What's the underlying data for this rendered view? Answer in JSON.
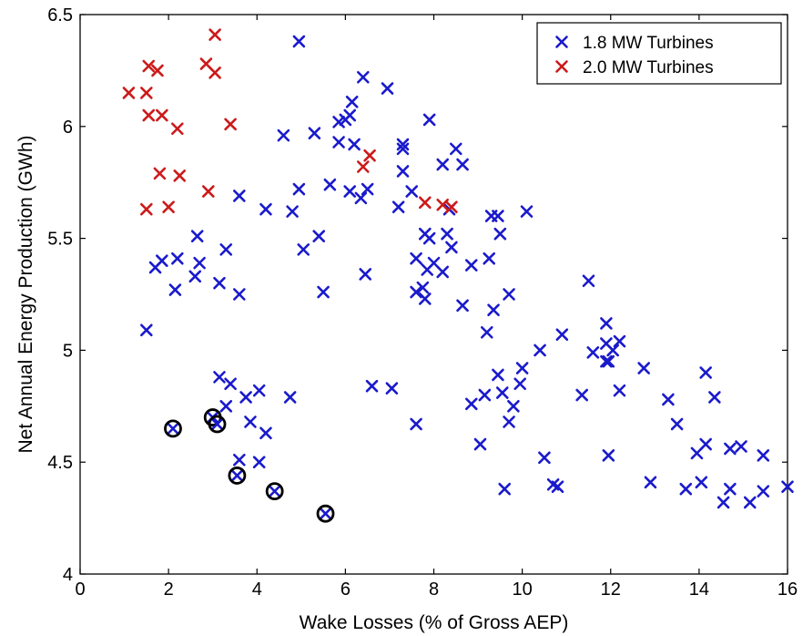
{
  "chart_data": {
    "type": "scatter",
    "xlabel": "Wake Losses (% of Gross AEP)",
    "ylabel": "Net Annual Energy Production (GWh)",
    "xlim": [
      0,
      16
    ],
    "ylim": [
      4,
      6.5
    ],
    "xticks": [
      0,
      2,
      4,
      6,
      8,
      10,
      12,
      14,
      16
    ],
    "xtick_labels": [
      "0",
      "2",
      "4",
      "6",
      "8",
      "10",
      "12",
      "14",
      "16"
    ],
    "yticks": [
      4,
      4.5,
      5,
      5.5,
      6,
      6.5
    ],
    "ytick_labels": [
      "4",
      "4.5",
      "5",
      "5.5",
      "6",
      "6.5"
    ],
    "grid": false,
    "legend_position": "top-right",
    "series": [
      {
        "name": "1.8 MW Turbines",
        "color": "#1a1acc",
        "marker": "x",
        "points": [
          [
            4.95,
            6.38
          ],
          [
            6.4,
            6.22
          ],
          [
            6.15,
            6.11
          ],
          [
            6.95,
            6.17
          ],
          [
            7.9,
            6.03
          ],
          [
            4.6,
            5.96
          ],
          [
            5.3,
            5.97
          ],
          [
            5.85,
            6.02
          ],
          [
            6.0,
            6.03
          ],
          [
            6.1,
            6.05
          ],
          [
            5.85,
            5.93
          ],
          [
            6.2,
            5.92
          ],
          [
            7.3,
            5.92
          ],
          [
            7.3,
            5.9
          ],
          [
            8.5,
            5.9
          ],
          [
            8.2,
            5.83
          ],
          [
            8.65,
            5.83
          ],
          [
            7.3,
            5.8
          ],
          [
            4.95,
            5.72
          ],
          [
            5.65,
            5.74
          ],
          [
            6.1,
            5.71
          ],
          [
            6.5,
            5.72
          ],
          [
            7.5,
            5.71
          ],
          [
            6.35,
            5.68
          ],
          [
            3.6,
            5.69
          ],
          [
            4.2,
            5.63
          ],
          [
            4.8,
            5.62
          ],
          [
            7.2,
            5.64
          ],
          [
            8.35,
            5.63
          ],
          [
            9.3,
            5.6
          ],
          [
            9.45,
            5.6
          ],
          [
            10.1,
            5.62
          ],
          [
            5.4,
            5.51
          ],
          [
            5.05,
            5.45
          ],
          [
            2.65,
            5.51
          ],
          [
            3.3,
            5.45
          ],
          [
            2.2,
            5.41
          ],
          [
            2.7,
            5.39
          ],
          [
            1.85,
            5.4
          ],
          [
            1.7,
            5.37
          ],
          [
            7.8,
            5.52
          ],
          [
            7.9,
            5.5
          ],
          [
            8.3,
            5.52
          ],
          [
            9.5,
            5.52
          ],
          [
            7.6,
            5.41
          ],
          [
            8.0,
            5.39
          ],
          [
            7.85,
            5.36
          ],
          [
            8.4,
            5.46
          ],
          [
            8.2,
            5.35
          ],
          [
            9.25,
            5.41
          ],
          [
            8.85,
            5.38
          ],
          [
            6.45,
            5.34
          ],
          [
            7.75,
            5.28
          ],
          [
            7.6,
            5.26
          ],
          [
            7.8,
            5.23
          ],
          [
            8.65,
            5.2
          ],
          [
            9.35,
            5.18
          ],
          [
            9.7,
            5.25
          ],
          [
            2.6,
            5.33
          ],
          [
            3.15,
            5.3
          ],
          [
            2.15,
            5.27
          ],
          [
            3.6,
            5.25
          ],
          [
            5.5,
            5.26
          ],
          [
            1.5,
            5.09
          ],
          [
            11.5,
            5.31
          ],
          [
            11.9,
            5.12
          ],
          [
            9.2,
            5.08
          ],
          [
            10.9,
            5.07
          ],
          [
            12.2,
            5.04
          ],
          [
            11.9,
            5.03
          ],
          [
            12.05,
            5.0
          ],
          [
            11.6,
            4.99
          ],
          [
            10.4,
            5.0
          ],
          [
            9.45,
            4.89
          ],
          [
            10.0,
            4.92
          ],
          [
            9.95,
            4.85
          ],
          [
            11.9,
            4.95
          ],
          [
            11.95,
            4.95
          ],
          [
            12.75,
            4.92
          ],
          [
            3.15,
            4.88
          ],
          [
            3.4,
            4.85
          ],
          [
            3.75,
            4.79
          ],
          [
            4.05,
            4.82
          ],
          [
            4.75,
            4.79
          ],
          [
            6.6,
            4.84
          ],
          [
            7.05,
            4.83
          ],
          [
            9.15,
            4.8
          ],
          [
            9.55,
            4.81
          ],
          [
            8.85,
            4.76
          ],
          [
            9.8,
            4.75
          ],
          [
            9.7,
            4.68
          ],
          [
            11.35,
            4.8
          ],
          [
            12.2,
            4.82
          ],
          [
            13.3,
            4.78
          ],
          [
            14.15,
            4.9
          ],
          [
            14.35,
            4.79
          ],
          [
            3.3,
            4.75
          ],
          [
            3.85,
            4.68
          ],
          [
            4.2,
            4.63
          ],
          [
            7.6,
            4.67
          ],
          [
            13.5,
            4.67
          ],
          [
            9.05,
            4.58
          ],
          [
            14.15,
            4.58
          ],
          [
            14.7,
            4.56
          ],
          [
            14.95,
            4.57
          ],
          [
            13.95,
            4.54
          ],
          [
            11.95,
            4.53
          ],
          [
            10.5,
            4.52
          ],
          [
            15.45,
            4.53
          ],
          [
            3.6,
            4.51
          ],
          [
            4.05,
            4.5
          ],
          [
            10.7,
            4.4
          ],
          [
            10.8,
            4.39
          ],
          [
            9.6,
            4.38
          ],
          [
            12.9,
            4.41
          ],
          [
            14.05,
            4.41
          ],
          [
            13.7,
            4.38
          ],
          [
            14.7,
            4.38
          ],
          [
            15.45,
            4.37
          ],
          [
            16.0,
            4.39
          ],
          [
            14.55,
            4.32
          ],
          [
            15.15,
            4.32
          ]
        ]
      },
      {
        "name": "2.0 MW Turbines",
        "color": "#cc1a1a",
        "marker": "x",
        "points": [
          [
            3.05,
            6.41
          ],
          [
            2.85,
            6.28
          ],
          [
            1.55,
            6.27
          ],
          [
            1.75,
            6.25
          ],
          [
            3.05,
            6.24
          ],
          [
            1.1,
            6.15
          ],
          [
            1.5,
            6.15
          ],
          [
            1.55,
            6.05
          ],
          [
            1.85,
            6.05
          ],
          [
            3.4,
            6.01
          ],
          [
            2.2,
            5.99
          ],
          [
            6.55,
            5.87
          ],
          [
            6.4,
            5.82
          ],
          [
            1.8,
            5.79
          ],
          [
            2.25,
            5.78
          ],
          [
            2.9,
            5.71
          ],
          [
            1.5,
            5.63
          ],
          [
            2.0,
            5.64
          ],
          [
            7.8,
            5.66
          ],
          [
            8.2,
            5.65
          ],
          [
            8.4,
            5.64
          ]
        ]
      },
      {
        "name": "",
        "color": "#000000",
        "marker": "circled-x",
        "points": [
          [
            2.1,
            4.65
          ],
          [
            3.0,
            4.7
          ],
          [
            3.1,
            4.67
          ],
          [
            3.55,
            4.44
          ],
          [
            4.4,
            4.37
          ],
          [
            5.55,
            4.27
          ]
        ]
      }
    ]
  }
}
